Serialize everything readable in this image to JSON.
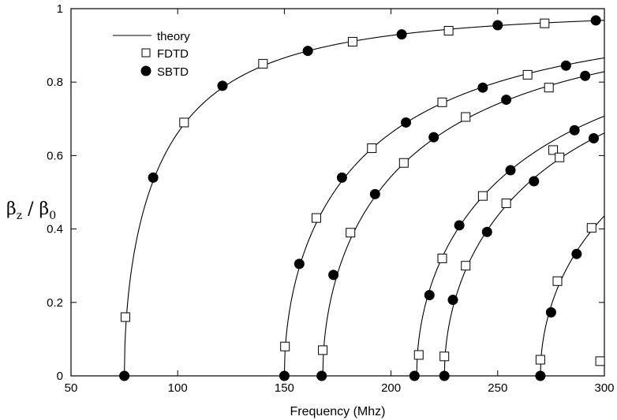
{
  "chart_data": {
    "type": "line",
    "xlabel": "Frequency (Mhz)",
    "ylabel": {
      "main1": "β",
      "sub1": "z",
      "sep": " / ",
      "main2": "β",
      "sub2": "0"
    },
    "xlim": [
      50,
      300
    ],
    "ylim": [
      0,
      1
    ],
    "xticks": [
      "50",
      "100",
      "150",
      "200",
      "250",
      "300"
    ],
    "yticks": [
      "0",
      "0.2",
      "0.4",
      "0.6",
      "0.8",
      "1"
    ],
    "legend": {
      "position": "top-left",
      "entries": [
        "theory",
        "FDTD",
        "SBTD"
      ]
    },
    "colors": {
      "line": "#000000",
      "fdtd_fill": "#ffffff",
      "sbtd_fill": "#000000"
    },
    "series": [
      {
        "name": "theory",
        "kind": "curves",
        "cutoffs": [
          75,
          150,
          168,
          212,
          225,
          270
        ]
      },
      {
        "name": "FDTD",
        "kind": "markers",
        "x": [
          75.5,
          103,
          140,
          182,
          227,
          272,
          150.3,
          165,
          191,
          224,
          264,
          168,
          181,
          206,
          235,
          274,
          213,
          224,
          243,
          276,
          225,
          235,
          254,
          279,
          270,
          278,
          294,
          298
        ],
        "y": [
          0.16,
          0.69,
          0.85,
          0.91,
          0.94,
          0.96,
          0.08,
          0.43,
          0.62,
          0.745,
          0.82,
          0.07,
          0.39,
          0.58,
          0.705,
          0.785,
          0.057,
          0.32,
          0.49,
          0.615,
          0.053,
          0.3,
          0.47,
          0.595,
          0.044,
          0.258,
          0.403,
          0.04
        ]
      },
      {
        "name": "SBTD",
        "kind": "markers",
        "x": [
          75,
          88.5,
          121,
          161,
          205,
          250,
          296,
          150,
          157,
          177,
          207,
          243,
          282,
          167.5,
          173,
          192.5,
          220,
          254,
          291,
          211,
          218,
          232,
          256,
          286,
          225,
          229,
          245,
          267,
          295,
          270,
          275,
          287
        ],
        "y": [
          0,
          0.54,
          0.79,
          0.885,
          0.93,
          0.955,
          0.968,
          0,
          0.305,
          0.54,
          0.69,
          0.785,
          0.845,
          0,
          0.275,
          0.495,
          0.65,
          0.752,
          0.817,
          0,
          0.22,
          0.41,
          0.56,
          0.669,
          0,
          0.207,
          0.392,
          0.53,
          0.647,
          0,
          0.173,
          0.332
        ]
      }
    ]
  }
}
